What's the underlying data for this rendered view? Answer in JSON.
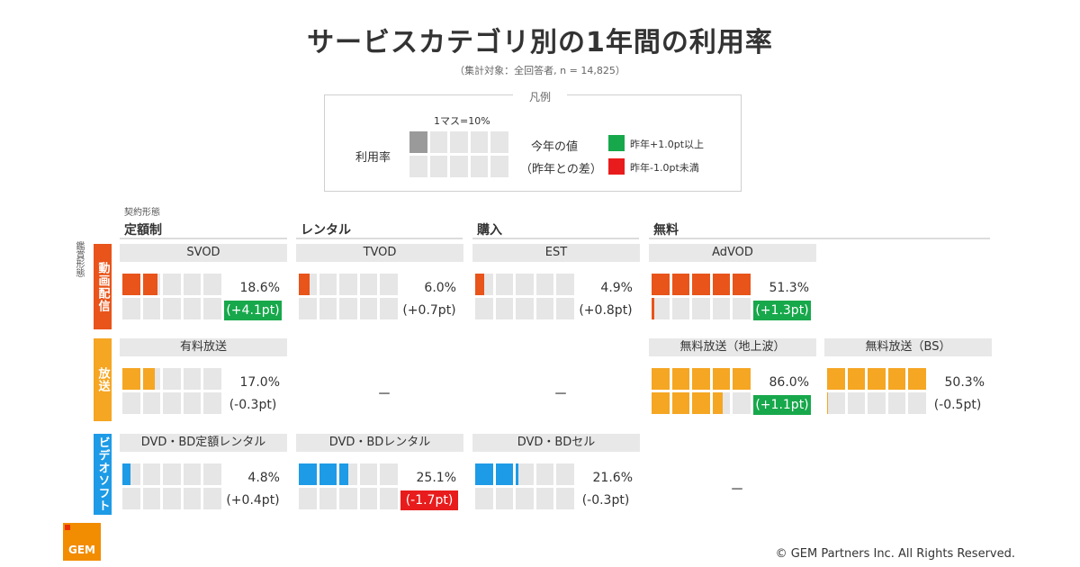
{
  "title": "サービスカテゴリ別の1年間の利用率",
  "subtitle": "（集計対象：全回答者, n = 14,825）",
  "legend": {
    "title": "凡例",
    "unit_label": "1マス=10%",
    "rate_label": "利用率",
    "value_label": "今年の値",
    "diff_label": "（昨年との差）",
    "green_label": "昨年+1.0pt以上",
    "red_label": "昨年-1.0pt未満",
    "sample_rate": 0.07,
    "sample_diff": 0
  },
  "axis": {
    "contract_label": "契約形態",
    "view_label": "鑑賞形態"
  },
  "colors": {
    "video": "#e8541a",
    "broadcast": "#f5a623",
    "disc": "#1e9be6",
    "green": "#17a84b",
    "red": "#e81c1c",
    "grey": "#9a9a9a",
    "empty": "#e6e6e6"
  },
  "chart_data": {
    "type": "table",
    "columns": [
      "定額制",
      "レンタル",
      "購入",
      "無料"
    ],
    "rows": [
      {
        "label": "動画配信",
        "color": "video"
      },
      {
        "label": "放送",
        "color": "broadcast"
      },
      {
        "label": "ビデオソフト",
        "color": "disc"
      }
    ],
    "cells": [
      {
        "row": 0,
        "col": 0,
        "name": "SVOD",
        "value": 18.6,
        "diff": 4.1,
        "value_text": "18.6%",
        "diff_text": "(+4.1pt)",
        "highlight": "green"
      },
      {
        "row": 0,
        "col": 1,
        "name": "TVOD",
        "value": 6.0,
        "diff": 0.7,
        "value_text": "6.0%",
        "diff_text": "(+0.7pt)",
        "highlight": "none"
      },
      {
        "row": 0,
        "col": 2,
        "name": "EST",
        "value": 4.9,
        "diff": 0.8,
        "value_text": "4.9%",
        "diff_text": "(+0.8pt)",
        "highlight": "none"
      },
      {
        "row": 0,
        "col": 3,
        "name": "AdVOD",
        "value": 51.3,
        "diff": 1.3,
        "value_text": "51.3%",
        "diff_text": "(+1.3pt)",
        "highlight": "green"
      },
      {
        "row": 1,
        "col": 0,
        "name": "有料放送",
        "value": 17.0,
        "diff": -0.3,
        "value_text": "17.0%",
        "diff_text": "(-0.3pt)",
        "highlight": "none"
      },
      {
        "row": 1,
        "col": 3,
        "name": "無料放送（地上波）",
        "value": 86.0,
        "diff": 1.1,
        "value_text": "86.0%",
        "diff_text": "(+1.1pt)",
        "highlight": "green"
      },
      {
        "row": 1,
        "col": 4,
        "name": "無料放送（BS）",
        "value": 50.3,
        "diff": -0.5,
        "value_text": "50.3%",
        "diff_text": "(-0.5pt)",
        "highlight": "none"
      },
      {
        "row": 2,
        "col": 0,
        "name": "DVD・BD定額レンタル",
        "value": 4.8,
        "diff": 0.4,
        "value_text": "4.8%",
        "diff_text": "(+0.4pt)",
        "highlight": "none"
      },
      {
        "row": 2,
        "col": 1,
        "name": "DVD・BDレンタル",
        "value": 25.1,
        "diff": -1.7,
        "value_text": "25.1%",
        "diff_text": "(-1.7pt)",
        "highlight": "red"
      },
      {
        "row": 2,
        "col": 2,
        "name": "DVD・BDセル",
        "value": 21.6,
        "diff": -0.3,
        "value_text": "21.6%",
        "diff_text": "(-0.3pt)",
        "highlight": "none"
      }
    ],
    "empty_cells": [
      {
        "row": 1,
        "col": 1,
        "text": "－"
      },
      {
        "row": 1,
        "col": 2,
        "text": "－"
      },
      {
        "row": 2,
        "col": 3,
        "text": "－"
      }
    ]
  },
  "footer": {
    "copyright": "© GEM Partners Inc. All Rights Reserved.",
    "logo_text": "GEM"
  }
}
